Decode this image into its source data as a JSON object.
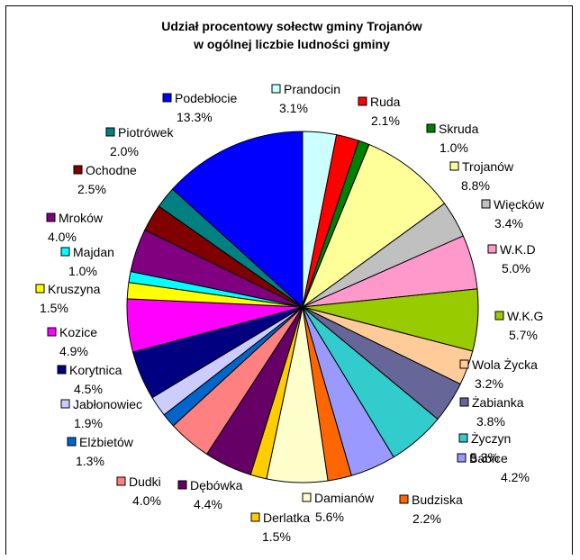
{
  "chart_data": {
    "type": "pie",
    "title": "Udział procentowy sołectw gminy Trojanów",
    "subtitle": "w ogólnej liczbie ludności gminy",
    "slices": [
      {
        "name": "Prandocin",
        "value": 3.1,
        "label": "3.1%",
        "color": "#ccffff"
      },
      {
        "name": "Ruda",
        "value": 2.1,
        "label": "2.1%",
        "color": "#ff0000"
      },
      {
        "name": "Skruda",
        "value": 1.0,
        "label": "1.0%",
        "color": "#008000"
      },
      {
        "name": "Trojanów",
        "value": 8.8,
        "label": "8.8%",
        "color": "#ffff99"
      },
      {
        "name": "Więcków",
        "value": 3.4,
        "label": "3.4%",
        "color": "#c0c0c0"
      },
      {
        "name": "W.K.D",
        "value": 5.0,
        "label": "5.0%",
        "color": "#ff99cc"
      },
      {
        "name": "W.K.G",
        "value": 5.7,
        "label": "5.7%",
        "color": "#99cc00"
      },
      {
        "name": "Wola Życka",
        "value": 3.2,
        "label": "3.2%",
        "color": "#ffcc99"
      },
      {
        "name": "Żabianka",
        "value": 3.8,
        "label": "3.8%",
        "color": "#666699"
      },
      {
        "name": "Życzyn",
        "value": 5.3,
        "label": "5.3%",
        "color": "#33cccc"
      },
      {
        "name": "Babice",
        "value": 4.2,
        "label": "4.2%",
        "color": "#9999ff"
      },
      {
        "name": "Budziska",
        "value": 2.2,
        "label": "2.2%",
        "color": "#ff6600"
      },
      {
        "name": "Damianów",
        "value": 5.6,
        "label": "5.6%",
        "color": "#ffffcc"
      },
      {
        "name": "Derlatka",
        "value": 1.5,
        "label": "1.5%",
        "color": "#ffcc00"
      },
      {
        "name": "Dębówka",
        "value": 4.4,
        "label": "4.4%",
        "color": "#660066"
      },
      {
        "name": "Dudki",
        "value": 4.0,
        "label": "4.0%",
        "color": "#ff8080"
      },
      {
        "name": "Elżbietów",
        "value": 1.3,
        "label": "1.3%",
        "color": "#0066cc"
      },
      {
        "name": "Jabłonowiec",
        "value": 1.9,
        "label": "1.9%",
        "color": "#ccccff"
      },
      {
        "name": "Korytnica",
        "value": 4.5,
        "label": "4.5%",
        "color": "#000080"
      },
      {
        "name": "Kozice",
        "value": 4.9,
        "label": "4.9%",
        "color": "#ff00ff"
      },
      {
        "name": "Kruszyna",
        "value": 1.5,
        "label": "1.5%",
        "color": "#ffff00"
      },
      {
        "name": "Majdan",
        "value": 1.0,
        "label": "1.0%",
        "color": "#00ffff"
      },
      {
        "name": "Mroków",
        "value": 4.0,
        "label": "4.0%",
        "color": "#800080"
      },
      {
        "name": "Ochodne",
        "value": 2.5,
        "label": "2.5%",
        "color": "#800000"
      },
      {
        "name": "Piotrówek",
        "value": 2.0,
        "label": "2.0%",
        "color": "#008080"
      },
      {
        "name": "Podebłocie",
        "value": 13.3,
        "label": "13.3%",
        "color": "#0000ff"
      }
    ],
    "legend": "none",
    "data_labels": "category name and percentage"
  }
}
